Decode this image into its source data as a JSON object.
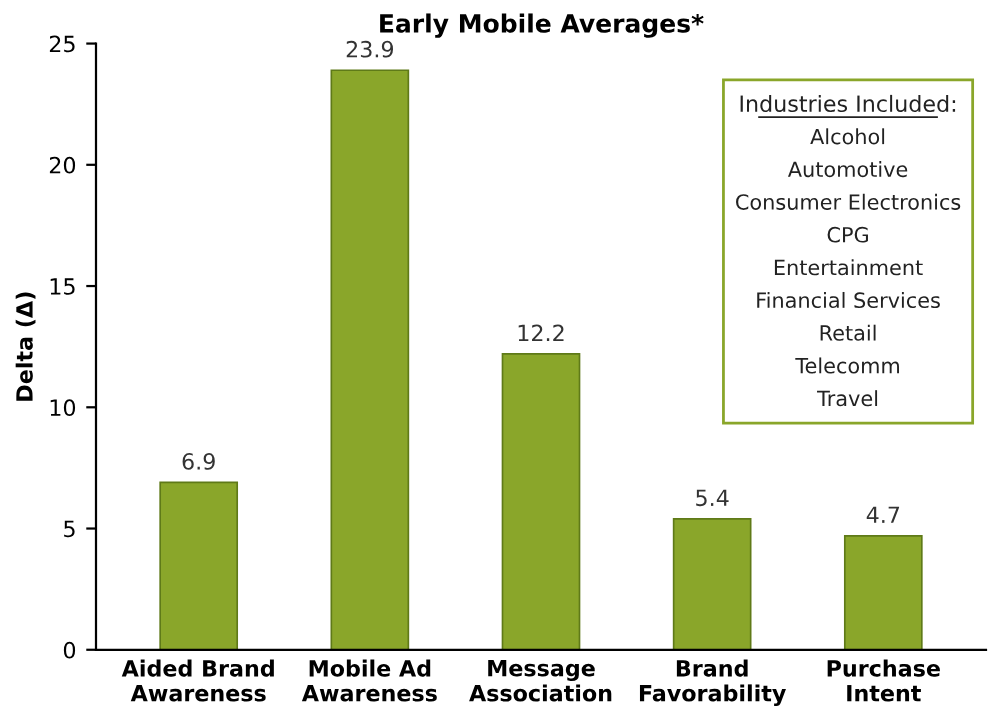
{
  "chart_data": {
    "type": "bar",
    "title": "Early Mobile Averages*",
    "ylabel": "Delta (Δ)",
    "categories": [
      "Aided Brand\nAwareness",
      "Mobile Ad\nAwareness",
      "Message\nAssociation",
      "Brand\nFavorability",
      "Purchase\nIntent"
    ],
    "values": [
      6.9,
      23.9,
      12.2,
      5.4,
      4.7
    ],
    "color": "#8aa62a",
    "ylim": [
      0,
      25
    ],
    "yticks": [
      0,
      5,
      10,
      15,
      20,
      25
    ],
    "grid": false,
    "data_labels": true,
    "annotations": [
      "Industries Included:",
      "Alcohol",
      "Automotive",
      "Consumer Electronics",
      "CPG",
      "Entertainment",
      "Financial Services",
      "Retail",
      "Telecomm",
      "Travel"
    ]
  }
}
